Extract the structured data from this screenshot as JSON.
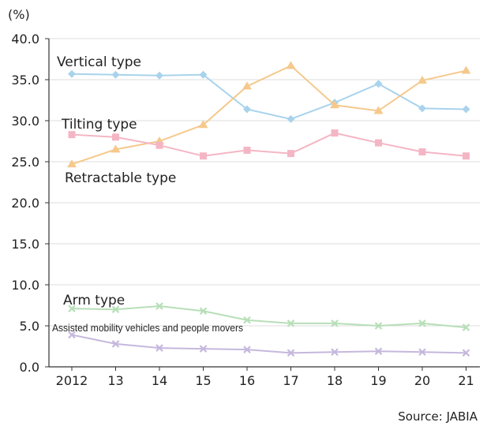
{
  "chart_data": {
    "type": "line",
    "y_unit": "(%)",
    "ylim": [
      0,
      40
    ],
    "yticks": [
      "40.0",
      "35.0",
      "30.0",
      "25.0",
      "20.0",
      "15.0",
      "10.0",
      "5.0",
      "0.0"
    ],
    "categories": [
      "2012",
      "13",
      "14",
      "15",
      "16",
      "17",
      "18",
      "19",
      "20",
      "21"
    ],
    "grid": true,
    "series": [
      {
        "name": "Vertical type",
        "color": "#a9d3ec",
        "marker": "diamond",
        "values": [
          35.7,
          35.6,
          35.5,
          35.6,
          31.4,
          30.2,
          32.2,
          34.5,
          31.5,
          31.4
        ]
      },
      {
        "name": "Tilting type",
        "color": "#f5c98c",
        "marker": "triangle",
        "values": [
          24.7,
          26.5,
          27.5,
          29.5,
          34.2,
          36.7,
          31.9,
          31.2,
          34.9,
          36.1
        ]
      },
      {
        "name": "Retractable type",
        "color": "#f4b6c4",
        "marker": "square",
        "values": [
          28.3,
          28.0,
          27.0,
          25.7,
          26.4,
          26.0,
          28.5,
          27.3,
          26.2,
          25.7
        ]
      },
      {
        "name": "Arm type",
        "color": "#b7dfb8",
        "marker": "x",
        "values": [
          7.1,
          7.0,
          7.4,
          6.8,
          5.7,
          5.3,
          5.3,
          5.0,
          5.3,
          4.8
        ]
      },
      {
        "name": "Assisted mobility vehicles and people movers",
        "color": "#c5b8dd",
        "marker": "x",
        "values": [
          3.9,
          2.8,
          2.3,
          2.2,
          2.1,
          1.7,
          1.8,
          1.9,
          1.8,
          1.7
        ]
      }
    ],
    "source": "Source: JABIA"
  }
}
